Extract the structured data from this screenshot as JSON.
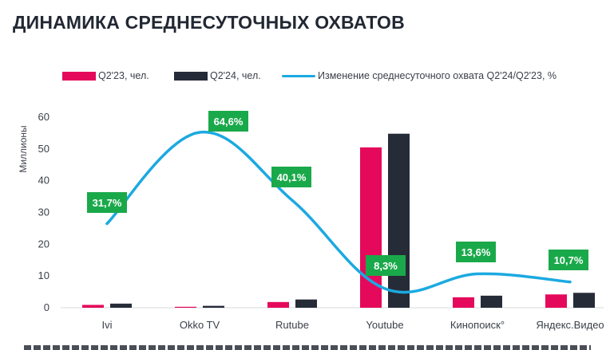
{
  "chart_data": {
    "type": "bar",
    "title": "ДИНАМИКА СРЕДНЕСУТОЧНЫХ ОХВАТОВ",
    "ylabel": "Миллионы",
    "ylim": [
      0,
      60
    ],
    "yticks": [
      "0",
      "10",
      "20",
      "30",
      "40",
      "50",
      "60"
    ],
    "categories": [
      "Ivi",
      "Okko TV",
      "Rutube",
      "Youtube",
      "Кинопоиск°",
      "Яндекс.Видео"
    ],
    "series": [
      {
        "name": "Q2'23, чел.",
        "color": "#e5095c",
        "values": [
          0.9,
          0.3,
          1.8,
          50.5,
          3.3,
          4.2
        ]
      },
      {
        "name": "Q2'24, чел.",
        "color": "#262b38",
        "values": [
          1.3,
          0.6,
          2.6,
          54.8,
          3.8,
          4.7
        ]
      }
    ],
    "line_series": {
      "name": "Изменение среднесуточного охвата Q2'24/Q2'23, %",
      "color": "#1ba9e1",
      "values": [
        31.7,
        64.6,
        40.1,
        8.3,
        13.6,
        10.7
      ],
      "labels": [
        "31,7%",
        "64,6%",
        "40,1%",
        "8,3%",
        "13,6%",
        "10,7%"
      ],
      "label_color": "#1aa94a"
    },
    "legend_position": "top"
  }
}
